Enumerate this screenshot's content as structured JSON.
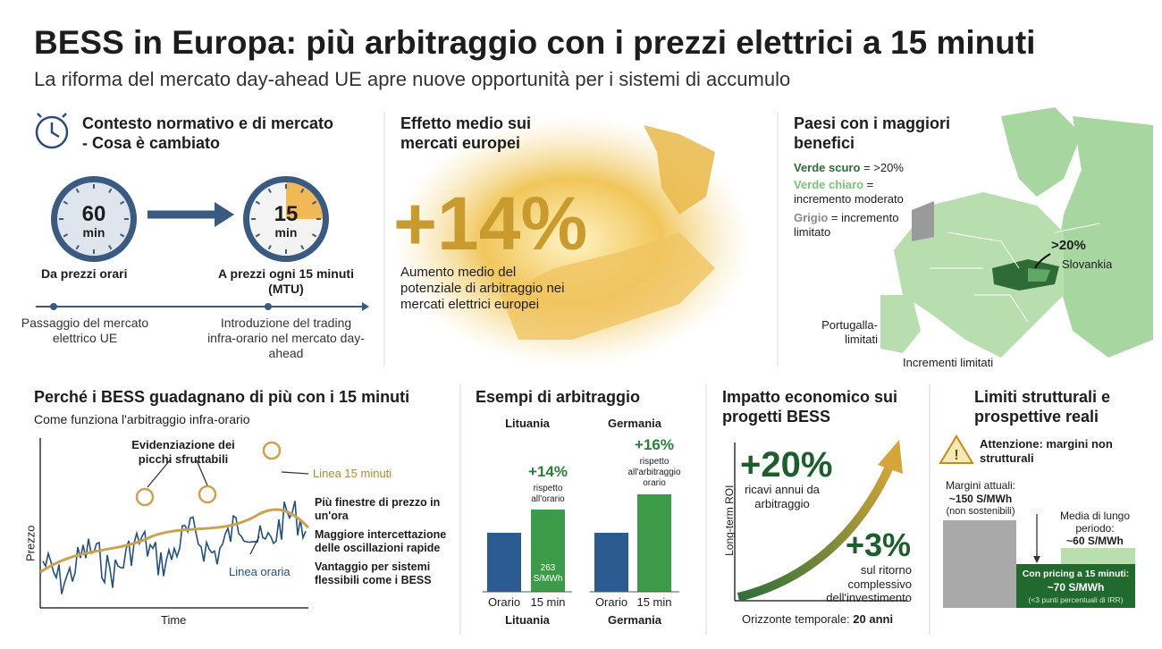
{
  "header": {
    "title": "BESS in Europa: più arbitraggio con i prezzi elettrici a 15 minuti",
    "subtitle": "La riforma del mercato day-ahead UE apre nuove opportunità per i sistemi di accumulo"
  },
  "context": {
    "title": "Contesto normativo e di mercato - Cosa è cambiato",
    "clock_before": {
      "number": "60",
      "unit": "min",
      "label": "Da prezzi orari"
    },
    "clock_after": {
      "number": "15",
      "unit": "min",
      "label": "A prezzi ogni 15 minuti (MTU)"
    },
    "timeline": [
      "Passaggio del mercato elettrico UE",
      "Introduzione del trading infra-orario nel mercato day-ahead"
    ]
  },
  "effect": {
    "title": "Effetto medio sui mercati europei",
    "value": "+14%",
    "description": "Aumento medio del potenziale di arbitraggio nei mercati elettrici europei"
  },
  "countries": {
    "title": "Paesi con i maggiori benefici",
    "legend": [
      {
        "name": "Verde scuro",
        "text": "= >20%"
      },
      {
        "name": "Verde chiaro",
        "text": "= incremento moderato"
      },
      {
        "name": "Grigio",
        "text": "= incremento limitato"
      }
    ],
    "labels": [
      ">20%",
      "Slovankia",
      "Portugalla-limitati",
      "Incrementi limitati"
    ]
  },
  "why": {
    "title": "Perché i BESS guadagnano di più con i 15 minuti",
    "subtitle": "Come funziona l'arbitraggio infra-orario",
    "peaks": "Evidenziazione dei picchi sfruttabili",
    "line_15": "Linea 15 minuti",
    "line_hourly": "Linea oraria",
    "y_label": "Prezzo",
    "x_label": "Time",
    "bullets": [
      "Più finestre di prezzo in un'ora",
      "Maggiore intercettazione delle oscillazioni rapide",
      "Vantaggio per sistemi flessibili come i BESS"
    ]
  },
  "examples": {
    "title": "Esempi di arbitraggio",
    "groups": [
      {
        "name": "Lituania",
        "gain": "+14%",
        "note": "rispetto all'orario",
        "bar_label": "263 S/MWh",
        "bars": [
          "Orario",
          "15 min"
        ]
      },
      {
        "name": "Germania",
        "gain": "+16%",
        "note": "rispetto all'arbitraggio orario",
        "bars": [
          "Orario",
          "15 min"
        ]
      }
    ]
  },
  "impact": {
    "title": "Impatto economico sui progetti BESS",
    "revenue": "+20%",
    "revenue_text": "ricavi annui da arbitraggio",
    "return": "+3%",
    "return_text": "sul ritorno complessivo dell'investimento",
    "y_label": "Long-term ROI",
    "x_label": "Orizzonte temporale:",
    "x_value": "20 anni"
  },
  "limits": {
    "title": "Limiti strutturali e prospettive reali",
    "warning": "Attenzione: margini non strutturali",
    "current": {
      "label": "Margini attuali:",
      "value": "~150 S/MWh",
      "note": "(non sostenibili)"
    },
    "long_term": {
      "label": "Media di lungo periodo:",
      "value": "~60 S/MWh"
    },
    "pricing": {
      "label": "Con pricing a 15 minuti:",
      "value": "~70 S/MWh",
      "note": "(<3 punti percentuali di IRR)"
    }
  }
}
